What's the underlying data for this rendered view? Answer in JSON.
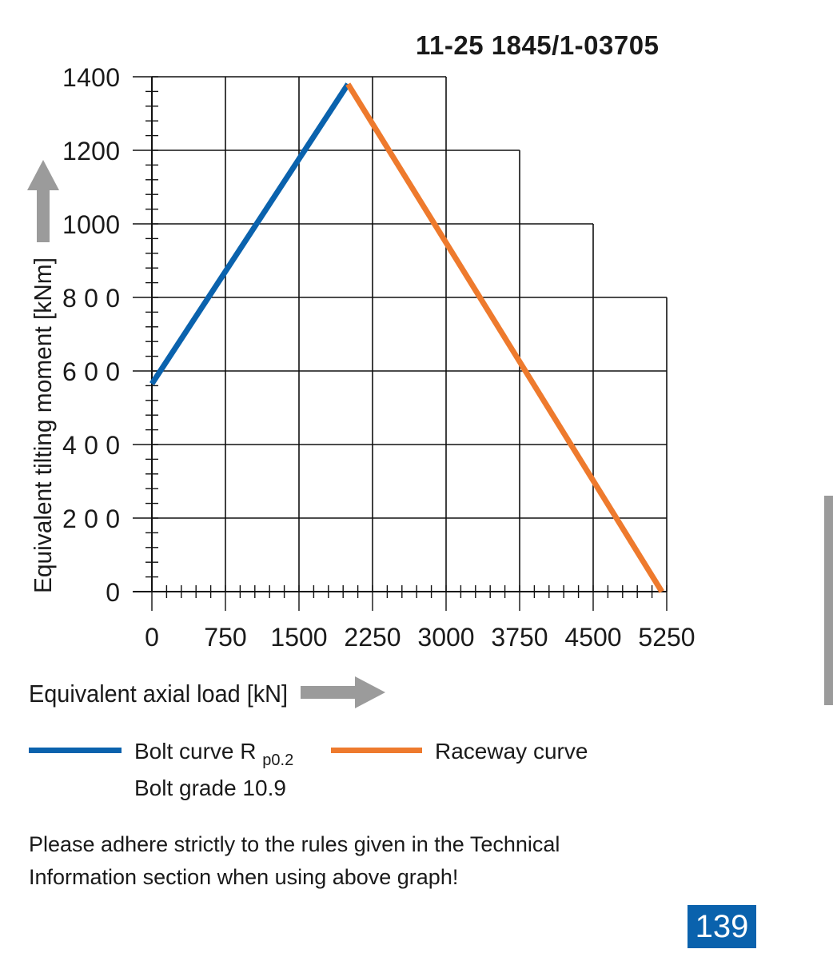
{
  "header": {
    "code": "11-25 1845/1-03705"
  },
  "colors": {
    "bolt": "#0a62ad",
    "raceway": "#ee7a2d",
    "arrow": "#9b9b9b",
    "grid": "#111111",
    "page_badge": "#0a62ad",
    "side_tab": "#9b9b9b"
  },
  "chart_data": {
    "type": "line",
    "xlabel": "Equivalent axial load [kN]",
    "ylabel": "Equivalent tilting moment [kNm]",
    "xlim": [
      0,
      5250
    ],
    "ylim": [
      0,
      1400
    ],
    "x_ticks": [
      "0",
      "750",
      "1500",
      "2250",
      "3000",
      "3750",
      "4500",
      "5250"
    ],
    "y_ticks": [
      "0",
      "200",
      "400",
      "600",
      "800",
      "1000",
      "1200",
      "1400"
    ],
    "grid": true,
    "grid_envelope": [
      {
        "x_to": 3000,
        "y_to": 1400
      },
      {
        "x_to": 3750,
        "y_to": 1200
      },
      {
        "x_to": 4500,
        "y_to": 1000
      },
      {
        "x_to": 5250,
        "y_to": 800
      }
    ],
    "series": [
      {
        "name": "Bolt curve R p0.2",
        "color": "#0a62ad",
        "points": [
          [
            0,
            565
          ],
          [
            2000,
            1380
          ]
        ]
      },
      {
        "name": "Raceway curve",
        "color": "#ee7a2d",
        "points": [
          [
            2000,
            1380
          ],
          [
            5200,
            0
          ]
        ]
      }
    ]
  },
  "legend": {
    "bolt_label": "Bolt curve  R",
    "bolt_sub": "p0.2",
    "bolt_grade": "Bolt grade 10.9",
    "raceway_label": "Raceway curve"
  },
  "note": "Please adhere strictly to the rules given in the Technical Information section when using above graph!",
  "page_number": "139"
}
